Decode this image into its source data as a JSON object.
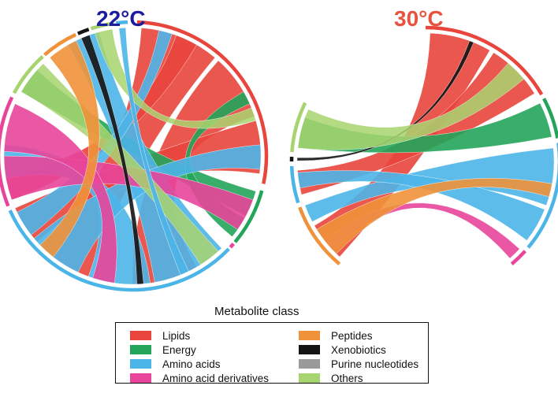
{
  "titles": {
    "left": "22°C",
    "right": "30°C",
    "left_color": "#1c1c9e",
    "right_color": "#e8533f"
  },
  "legend": {
    "title": "Metabolite class",
    "items": [
      {
        "label": "Lipids",
        "color": "#e8453c"
      },
      {
        "label": "Energy",
        "color": "#22a55a"
      },
      {
        "label": "Amino acids",
        "color": "#4cb5e8"
      },
      {
        "label": "Amino acid derivatives",
        "color": "#e8459a"
      },
      {
        "label": "Peptides",
        "color": "#f0923a"
      },
      {
        "label": "Xenobiotics",
        "color": "#141414"
      },
      {
        "label": "Purine nucleotides",
        "color": "#9a9a9a"
      },
      {
        "label": "Others",
        "color": "#a8d46f"
      }
    ]
  }
}
